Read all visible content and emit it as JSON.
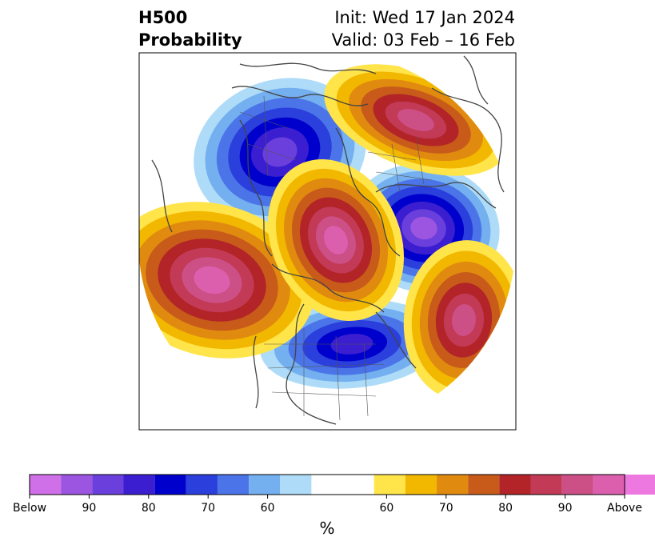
{
  "title": {
    "left_line1": "H500",
    "left_line2": "Probability",
    "right_line1": "Init: Wed 17 Jan 2024",
    "right_line2": "Valid: 03 Feb – 16 Feb"
  },
  "colorbar": {
    "unit": "%",
    "colors": [
      "#d070e8",
      "#9b55e0",
      "#6a3fdc",
      "#3a1ed0",
      "#0000cc",
      "#2a3fdb",
      "#4a74e8",
      "#74aff0",
      "#aedcf8",
      "#ffffff",
      "#ffe44a",
      "#f2b800",
      "#e08b10",
      "#c85a1a",
      "#b22427",
      "#c23a56",
      "#cc4f86",
      "#dc5fae",
      "#ec78e0"
    ],
    "ticks": [
      {
        "label": "Below",
        "frac": 0.0
      },
      {
        "label": "90",
        "frac": 0.1
      },
      {
        "label": "80",
        "frac": 0.2
      },
      {
        "label": "70",
        "frac": 0.3
      },
      {
        "label": "60",
        "frac": 0.4
      },
      {
        "label": "60",
        "frac": 0.6
      },
      {
        "label": "70",
        "frac": 0.7
      },
      {
        "label": "80",
        "frac": 0.8
      },
      {
        "label": "90",
        "frac": 0.9
      },
      {
        "label": "Above",
        "frac": 1.0
      }
    ]
  },
  "map": {
    "projection": "north-polar-stereographic",
    "region": "Northern Hemisphere",
    "anomalies": [
      {
        "name": "below-western-russia",
        "sign": "below",
        "level": 7
      },
      {
        "name": "below-europe",
        "sign": "below",
        "level": 8
      },
      {
        "name": "below-eastern-us",
        "sign": "below",
        "level": 6
      },
      {
        "name": "above-pacific",
        "sign": "above",
        "level": 8
      },
      {
        "name": "above-arctic",
        "sign": "above",
        "level": 8
      },
      {
        "name": "above-north-atlantic",
        "sign": "above",
        "level": 7
      },
      {
        "name": "above-siberia",
        "sign": "above",
        "level": 7
      }
    ]
  }
}
